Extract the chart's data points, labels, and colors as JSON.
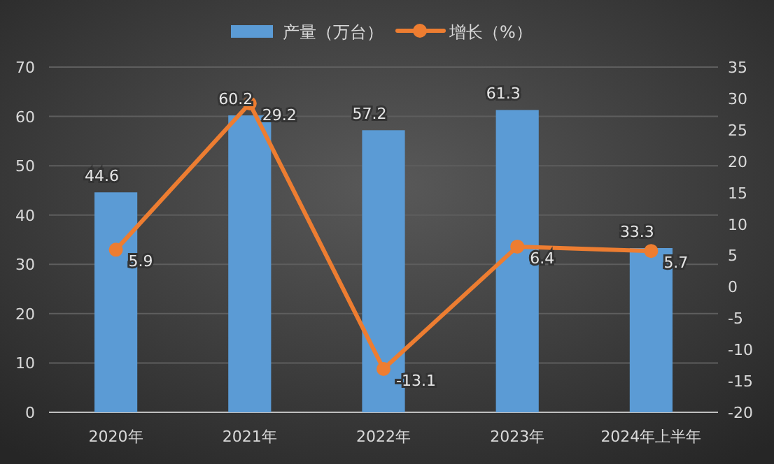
{
  "chart_data": {
    "type": "bar",
    "categories": [
      "2020年",
      "2021年",
      "2022年",
      "2023年",
      "2024年上半年"
    ],
    "series": [
      {
        "name": "产量（万台）",
        "color": "#5b9bd5",
        "values": [
          44.6,
          60.2,
          57.2,
          61.3,
          33.3
        ]
      },
      {
        "name": "增长（%）",
        "type": "line",
        "axis": "y2",
        "color": "#ed7d31",
        "values": [
          5.9,
          29.2,
          -13.1,
          6.4,
          5.7
        ]
      }
    ],
    "ylim": [
      0,
      70
    ],
    "yticks": [
      0,
      10,
      20,
      30,
      40,
      50,
      60,
      70
    ],
    "y2lim": [
      -20,
      35
    ],
    "y2ticks": [
      -20,
      -15,
      -10,
      -5,
      0,
      5,
      10,
      15,
      20,
      25,
      30,
      35
    ],
    "grid": "y",
    "legend": "top",
    "marker": "circle",
    "data_labels": true
  }
}
